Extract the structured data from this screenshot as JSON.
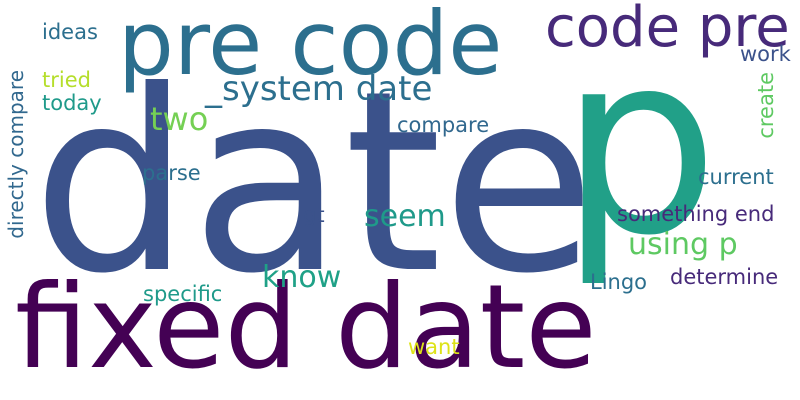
{
  "words": [
    {
      "text": "date",
      "color": "#3b528b"
    },
    {
      "text": "p",
      "color": "#21a088"
    },
    {
      "text": "fixed date",
      "color": "#440154"
    },
    {
      "text": "pre code",
      "color": "#2c6f8e"
    },
    {
      "text": "code pre",
      "color": "#472a7a"
    },
    {
      "text": "_system date",
      "color": "#2c6f8e"
    },
    {
      "text": "ideas",
      "color": "#2c6f8e"
    },
    {
      "text": "tried",
      "color": "#b5de2b"
    },
    {
      "text": "today",
      "color": "#1f9a8a"
    },
    {
      "text": "directly compare",
      "color": "#31688e"
    },
    {
      "text": "two",
      "color": "#75d054"
    },
    {
      "text": "compare",
      "color": "#31688e"
    },
    {
      "text": "work",
      "color": "#3b528b"
    },
    {
      "text": "create",
      "color": "#5ec962"
    },
    {
      "text": "current",
      "color": "#2c6f8e"
    },
    {
      "text": "parse",
      "color": "#2c6f8e"
    },
    {
      "text": "gt",
      "color": "#3b528b"
    },
    {
      "text": "seem",
      "color": "#1f9a8a"
    },
    {
      "text": "something end",
      "color": "#472a7a"
    },
    {
      "text": "using p",
      "color": "#5ec962"
    },
    {
      "text": "know",
      "color": "#1fa187"
    },
    {
      "text": "Lingo",
      "color": "#2c6f8e"
    },
    {
      "text": "determine",
      "color": "#472a7a"
    },
    {
      "text": "specific",
      "color": "#1f9a8a"
    },
    {
      "text": "want",
      "color": "#dde318"
    }
  ]
}
